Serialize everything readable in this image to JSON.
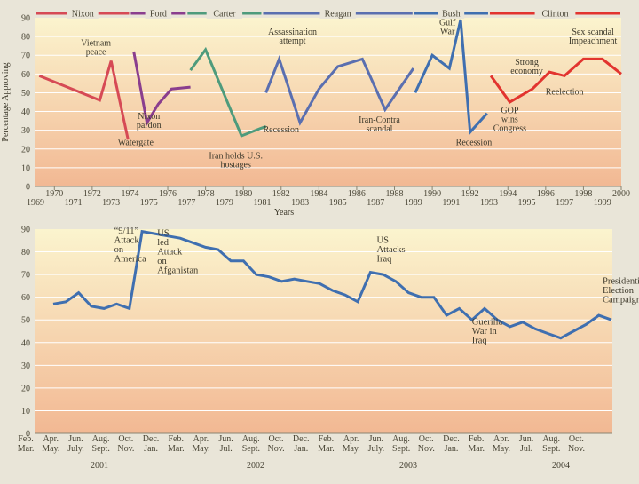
{
  "colors": {
    "nixon": "#d64a55",
    "ford": "#8a3e8e",
    "carter": "#4e9b7c",
    "reagan": "#5a6fb0",
    "bush": "#3f6fb0",
    "clinton": "#e2342f",
    "bush2": "#3f6fb0",
    "bg_top": "#fbf4ce",
    "bg_bottom": "#f2b893",
    "grid": "#ffffff"
  },
  "chart_data": [
    {
      "type": "line",
      "title": "",
      "ylabel": "Percentage Approving",
      "xlabel": "Years",
      "ylim": [
        0,
        90
      ],
      "xlim": [
        1969,
        2000
      ],
      "yticks": [
        "0",
        "10",
        "20",
        "30",
        "40",
        "50",
        "60",
        "70",
        "80",
        "90"
      ],
      "xticks_top": [
        "1970",
        "1972",
        "1974",
        "1976",
        "1978",
        "1980",
        "1982",
        "1984",
        "1986",
        "1988",
        "1990",
        "1992",
        "1994",
        "1996",
        "1998",
        "2000"
      ],
      "xticks_bottom": [
        "1969",
        "1971",
        "1973",
        "1975",
        "1977",
        "1979",
        "1981",
        "1983",
        "1985",
        "1987",
        "1989",
        "1991",
        "1993",
        "1995",
        "1997",
        "1999"
      ],
      "presidents": [
        {
          "name": "Nixon",
          "span": [
            1969,
            1974
          ]
        },
        {
          "name": "Ford",
          "span": [
            1974,
            1977
          ]
        },
        {
          "name": "Carter",
          "span": [
            1977,
            1981
          ]
        },
        {
          "name": "Reagan",
          "span": [
            1981,
            1989
          ]
        },
        {
          "name": "Bush",
          "span": [
            1989,
            1993
          ]
        },
        {
          "name": "Clinton",
          "span": [
            1993,
            2000
          ]
        }
      ],
      "series": [
        {
          "name": "Nixon",
          "color_key": "nixon",
          "points": [
            [
              1969.2,
              59
            ],
            [
              1972.4,
              46
            ],
            [
              1973.0,
              67
            ],
            [
              1973.9,
              25
            ]
          ]
        },
        {
          "name": "Ford",
          "color_key": "ford",
          "points": [
            [
              1974.2,
              72
            ],
            [
              1974.9,
              34
            ],
            [
              1975.5,
              44
            ],
            [
              1976.2,
              52
            ],
            [
              1977.2,
              53
            ]
          ]
        },
        {
          "name": "Carter",
          "color_key": "carter",
          "points": [
            [
              1977.2,
              62
            ],
            [
              1978.0,
              73
            ],
            [
              1979.9,
              27
            ],
            [
              1980.9,
              31
            ],
            [
              1981.2,
              32
            ]
          ]
        },
        {
          "name": "Reagan",
          "color_key": "reagan",
          "points": [
            [
              1981.2,
              50
            ],
            [
              1981.9,
              68
            ],
            [
              1983.0,
              34
            ],
            [
              1984.0,
              52
            ],
            [
              1985.0,
              64
            ],
            [
              1986.3,
              68
            ],
            [
              1987.5,
              41
            ],
            [
              1989.0,
              63
            ]
          ]
        },
        {
          "name": "Bush",
          "color_key": "bush",
          "points": [
            [
              1989.1,
              50
            ],
            [
              1990.0,
              70
            ],
            [
              1990.9,
              63
            ],
            [
              1991.5,
              89
            ],
            [
              1992.0,
              29
            ],
            [
              1992.9,
              39
            ]
          ]
        },
        {
          "name": "Clinton",
          "color_key": "clinton",
          "points": [
            [
              1993.1,
              59
            ],
            [
              1994.1,
              45
            ],
            [
              1995.3,
              52
            ],
            [
              1996.2,
              61
            ],
            [
              1997.0,
              59
            ],
            [
              1998.0,
              68
            ],
            [
              1999.0,
              68
            ],
            [
              2000.0,
              60
            ]
          ]
        }
      ],
      "annotations": [
        {
          "lines": [
            "Vietnam",
            "peace"
          ],
          "x": 1972.2,
          "y": 75
        },
        {
          "lines": [
            "Watergate"
          ],
          "x": 1974.3,
          "y": 22
        },
        {
          "lines": [
            "Nixon",
            "pardon"
          ],
          "x": 1975.0,
          "y": 36
        },
        {
          "lines": [
            "Iran holds U.S.",
            "hostages"
          ],
          "x": 1979.6,
          "y": 15
        },
        {
          "lines": [
            "Assassination",
            "attempt"
          ],
          "x": 1982.6,
          "y": 81
        },
        {
          "lines": [
            "Recession"
          ],
          "x": 1982.0,
          "y": 29
        },
        {
          "lines": [
            "Iran-Contra",
            "scandal"
          ],
          "x": 1987.2,
          "y": 34
        },
        {
          "lines": [
            "Gulf",
            "War"
          ],
          "x": 1990.8,
          "y": 86
        },
        {
          "lines": [
            "Recession"
          ],
          "x": 1992.2,
          "y": 22
        },
        {
          "lines": [
            "Strong",
            "economy"
          ],
          "x": 1995.0,
          "y": 65
        },
        {
          "lines": [
            "Sex scandal",
            "Impeachment"
          ],
          "x": 1998.5,
          "y": 81
        },
        {
          "lines": [
            "Reelection"
          ],
          "x": 1997.0,
          "y": 49
        },
        {
          "lines": [
            "GOP",
            "wins",
            "Congress"
          ],
          "x": 1994.1,
          "y": 39
        }
      ]
    },
    {
      "type": "line",
      "title": "",
      "ylabel": "",
      "xlabel": "",
      "ylim": [
        0,
        90
      ],
      "xlim": [
        0,
        47
      ],
      "yticks": [
        "0",
        "10",
        "20",
        "30",
        "40",
        "50",
        "60",
        "70",
        "80",
        "90"
      ],
      "xticks_top": [
        "Feb.",
        "Apr.",
        "Jun.",
        "Aug.",
        "Oct.",
        "Dec.",
        "Feb.",
        "Apr.",
        "Jun.",
        "Aug.",
        "Oct.",
        "Dec.",
        "Feb.",
        "Apr.",
        "Jun.",
        "Aug.",
        "Oct.",
        "Dec.",
        "Feb.",
        "Apr.",
        "Jun.",
        "Aug.",
        "Oct."
      ],
      "xticks_bottom": [
        "Mar.",
        "May.",
        "July.",
        "Sept.",
        "Nov.",
        "Jan.",
        "Mar.",
        "May.",
        "Jul.",
        "Sept.",
        "Nov.",
        "Jan.",
        "Mar.",
        "May.",
        "July.",
        "Sept.",
        "Nov.",
        "Jan.",
        "Mar.",
        "May.",
        "Jul.",
        "Sept.",
        "Nov."
      ],
      "years": [
        "2001",
        "2002",
        "2003",
        "2004"
      ],
      "series": [
        {
          "name": "Bush",
          "color_key": "bush2",
          "values": [
            57,
            58,
            62,
            56,
            55,
            57,
            55,
            89,
            88,
            87,
            86,
            84,
            82,
            81,
            76,
            76,
            70,
            69,
            67,
            68,
            67,
            66,
            63,
            61,
            58,
            71,
            70,
            67,
            62,
            60,
            60,
            52,
            55,
            50,
            55,
            50,
            47,
            49,
            46,
            44,
            42,
            45,
            48,
            52,
            50
          ]
        }
      ],
      "annotations": [
        {
          "lines": [
            "“9/11”",
            "Attack",
            "on",
            "America"
          ],
          "x": 4.8,
          "y": 88
        },
        {
          "lines": [
            "US",
            "led",
            "Attack",
            "on",
            "Afganistan"
          ],
          "x": 8.2,
          "y": 87
        },
        {
          "lines": [
            "US",
            "Attacks",
            "Iraq"
          ],
          "x": 25.5,
          "y": 84
        },
        {
          "lines": [
            "Guerilla",
            "War in",
            "Iraq"
          ],
          "x": 33.0,
          "y": 48
        },
        {
          "lines": [
            "Presidential",
            "Election",
            "Campaign"
          ],
          "x": 43.3,
          "y": 66
        }
      ]
    }
  ]
}
